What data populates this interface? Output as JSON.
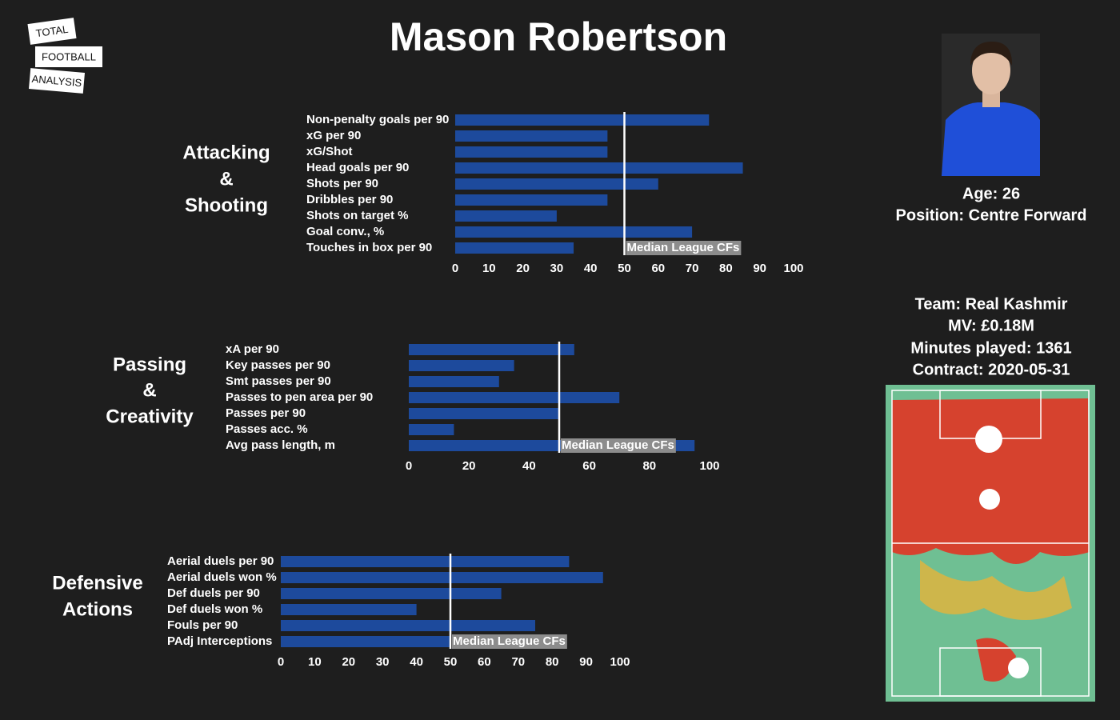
{
  "logo": [
    "TOTAL",
    "FOOTBALL",
    "ANALYSIS"
  ],
  "title": "Mason Robertson",
  "player_info": [
    "Age: 26",
    "Position: Centre Forward"
  ],
  "team_info": [
    "Team: Real Kashmir",
    "MV: £0.18M",
    "Minutes played: 1361",
    "Contract: 2020-05-31"
  ],
  "chart_data": [
    {
      "type": "bar",
      "orientation": "horizontal",
      "title_lines": [
        "Attacking",
        "&",
        "Shooting"
      ],
      "categories": [
        "Non-penalty goals per 90",
        "xG per 90",
        "xG/Shot",
        "Head goals per 90",
        "Shots per 90",
        "Dribbles per 90",
        "Shots on target %",
        "Goal conv., %",
        "Touches in box per 90"
      ],
      "values": [
        75,
        45,
        45,
        85,
        60,
        45,
        30,
        70,
        35
      ],
      "color": "#1d4a9c",
      "median": {
        "value": 50,
        "label": "Median League CFs"
      },
      "xlim": [
        0,
        100
      ],
      "xticks": [
        0,
        10,
        20,
        30,
        40,
        50,
        60,
        70,
        80,
        90,
        100
      ]
    },
    {
      "type": "bar",
      "orientation": "horizontal",
      "title_lines": [
        "Passing",
        "&",
        "Creativity"
      ],
      "categories": [
        "xA per 90",
        "Key passes per 90",
        "Smt passes per 90",
        "Passes to pen area per 90",
        "Passes per 90",
        "Passes acc. %",
        "Avg pass length, m"
      ],
      "values": [
        55,
        35,
        30,
        70,
        50,
        15,
        95
      ],
      "color": "#1d4a9c",
      "median": {
        "value": 50,
        "label": "Median League CFs"
      },
      "xlim": [
        0,
        100
      ],
      "xticks": [
        0,
        20,
        40,
        60,
        80,
        100
      ]
    },
    {
      "type": "bar",
      "orientation": "horizontal",
      "title_lines": [
        "Defensive",
        "Actions"
      ],
      "categories": [
        "Aerial duels per 90",
        "Aerial duels won %",
        "Def duels per 90",
        "Def duels won %",
        "Fouls per 90",
        "PAdj Interceptions"
      ],
      "values": [
        85,
        95,
        65,
        40,
        75,
        50
      ],
      "color": "#1d4a9c",
      "median": {
        "value": 50,
        "label": "Median League CFs"
      },
      "xlim": [
        0,
        100
      ],
      "xticks": [
        0,
        10,
        20,
        30,
        40,
        50,
        60,
        70,
        80,
        90,
        100
      ]
    }
  ]
}
